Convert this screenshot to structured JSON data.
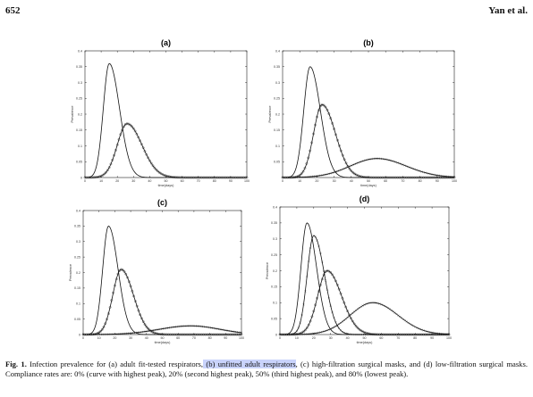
{
  "header": {
    "page_number": "652",
    "authors": "Yan et al."
  },
  "caption": {
    "label": "Fig. 1.",
    "part1": " Infection prevalence for (a) adult fit-tested respirators,",
    "highlight": " (b) unfitted adult respirators",
    "part2": ", (c) high-filtration surgical masks, and (d) low-filtration surgical masks. Compliance rates are: 0% (curve with highest peak), 20% (second highest peak), 50% (third highest peak), and 80% (lowest peak)."
  },
  "chart_data": [
    {
      "panel": "(a)",
      "type": "line",
      "xlabel": "time(days)",
      "ylabel": "Prevalence",
      "xlim": [
        0,
        100
      ],
      "ylim": [
        0,
        0.4
      ],
      "xticks": [
        "0",
        "10",
        "20",
        "30",
        "40",
        "50",
        "60",
        "70",
        "80",
        "90",
        "100"
      ],
      "yticks": [
        "0",
        "0.05",
        "0.1",
        "0.15",
        "0.2",
        "0.25",
        "0.3",
        "0.35",
        "0.4"
      ],
      "series": [
        {
          "marker": "none",
          "peak_x": 15,
          "peak_y": 0.36,
          "rise": 5.2,
          "fall": 9
        },
        {
          "marker": "circle",
          "peak_x": 26,
          "peak_y": 0.17,
          "rise": 8.5,
          "fall": 13
        }
      ]
    },
    {
      "panel": "(b)",
      "type": "line",
      "xlabel": "time(days)",
      "ylabel": "Prevalence",
      "xlim": [
        0,
        100
      ],
      "ylim": [
        0,
        0.4
      ],
      "xticks": [
        "0",
        "10",
        "20",
        "30",
        "40",
        "50",
        "60",
        "70",
        "80",
        "90",
        "100"
      ],
      "yticks": [
        "0.05",
        "0.1",
        "0.15",
        "0.2",
        "0.25",
        "0.3",
        "0.35",
        "0.4"
      ],
      "series": [
        {
          "marker": "none",
          "peak_x": 16,
          "peak_y": 0.35,
          "rise": 5.2,
          "fall": 8.5
        },
        {
          "marker": "circle",
          "peak_x": 23,
          "peak_y": 0.23,
          "rise": 7,
          "fall": 11
        },
        {
          "marker": "cross",
          "peak_x": 55,
          "peak_y": 0.06,
          "rise": 22,
          "fall": 24
        }
      ]
    },
    {
      "panel": "(c)",
      "type": "line",
      "xlabel": "time(days)",
      "ylabel": "Prevalence",
      "xlim": [
        0,
        100
      ],
      "ylim": [
        0,
        0.4
      ],
      "xticks": [
        "0",
        "10",
        "20",
        "30",
        "40",
        "50",
        "60",
        "70",
        "80",
        "90",
        "100"
      ],
      "yticks": [
        "0",
        "0.05",
        "0.1",
        "0.15",
        "0.2",
        "0.25",
        "0.3",
        "0.35",
        "0.4"
      ],
      "series": [
        {
          "marker": "none",
          "peak_x": 16,
          "peak_y": 0.35,
          "rise": 5.2,
          "fall": 8.5
        },
        {
          "marker": "circle",
          "peak_x": 24,
          "peak_y": 0.21,
          "rise": 7.5,
          "fall": 11
        },
        {
          "marker": "cross",
          "peak_x": 68,
          "peak_y": 0.028,
          "rise": 28,
          "fall": 26
        }
      ]
    },
    {
      "panel": "(d)",
      "type": "line",
      "xlabel": "time(days)",
      "ylabel": "Prevalence",
      "xlim": [
        0,
        100
      ],
      "ylim": [
        0,
        0.4
      ],
      "xticks": [
        "0",
        "10",
        "20",
        "30",
        "40",
        "50",
        "60",
        "70",
        "80",
        "90",
        "100"
      ],
      "yticks": [
        "0",
        "0.05",
        "0.1",
        "0.15",
        "0.2",
        "0.25",
        "0.3",
        "0.35",
        "0.4"
      ],
      "series": [
        {
          "marker": "none",
          "peak_x": 16,
          "peak_y": 0.35,
          "rise": 5,
          "fall": 8
        },
        {
          "marker": "cross",
          "peak_x": 20,
          "peak_y": 0.31,
          "rise": 5.5,
          "fall": 9
        },
        {
          "marker": "circle",
          "peak_x": 28,
          "peak_y": 0.2,
          "rise": 8,
          "fall": 12
        },
        {
          "marker": "cross",
          "peak_x": 55,
          "peak_y": 0.1,
          "rise": 19,
          "fall": 21
        }
      ]
    }
  ]
}
